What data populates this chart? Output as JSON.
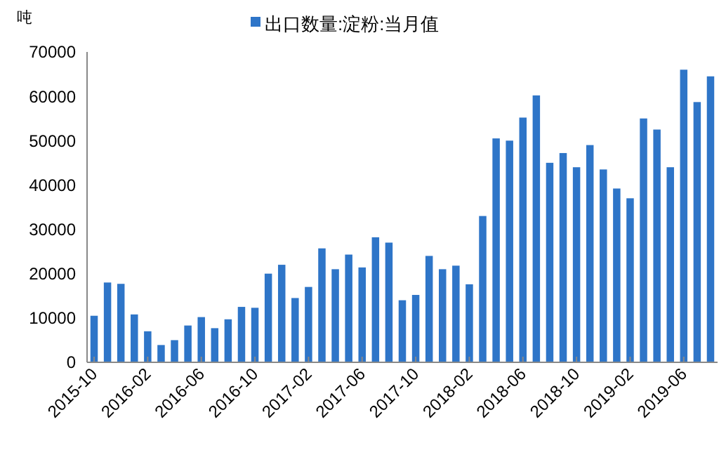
{
  "chart_data": {
    "type": "bar",
    "ylabel": "吨",
    "categories": [
      "2015-10",
      null,
      null,
      null,
      "2016-02",
      null,
      null,
      null,
      "2016-06",
      null,
      null,
      null,
      "2016-10",
      null,
      null,
      null,
      "2017-02",
      null,
      null,
      null,
      "2017-06",
      null,
      null,
      null,
      "2017-10",
      null,
      null,
      null,
      "2018-02",
      null,
      null,
      null,
      "2018-06",
      null,
      null,
      null,
      "2018-10",
      null,
      null,
      null,
      "2019-02",
      null,
      null,
      null,
      "2019-06",
      null,
      null
    ],
    "series": [
      {
        "name": "出口数量:淀粉:当月值",
        "color": "#2e75c8",
        "values": [
          10500,
          18000,
          17700,
          10800,
          7000,
          3900,
          5000,
          8300,
          10200,
          7700,
          9700,
          12500,
          12300,
          20000,
          22000,
          14500,
          17000,
          25700,
          21000,
          24300,
          21400,
          28200,
          27000,
          14000,
          15200,
          24000,
          21000,
          21800,
          17600,
          33000,
          50500,
          50000,
          55200,
          60200,
          45000,
          47200,
          44000,
          49000,
          43500,
          39200,
          37000,
          55000,
          52500,
          44000,
          66000,
          58700,
          64500
        ]
      }
    ],
    "ylim": [
      0,
      70000
    ],
    "yticks": [
      0,
      10000,
      20000,
      30000,
      40000,
      50000,
      60000,
      70000
    ],
    "grid": false,
    "legend": "top"
  }
}
